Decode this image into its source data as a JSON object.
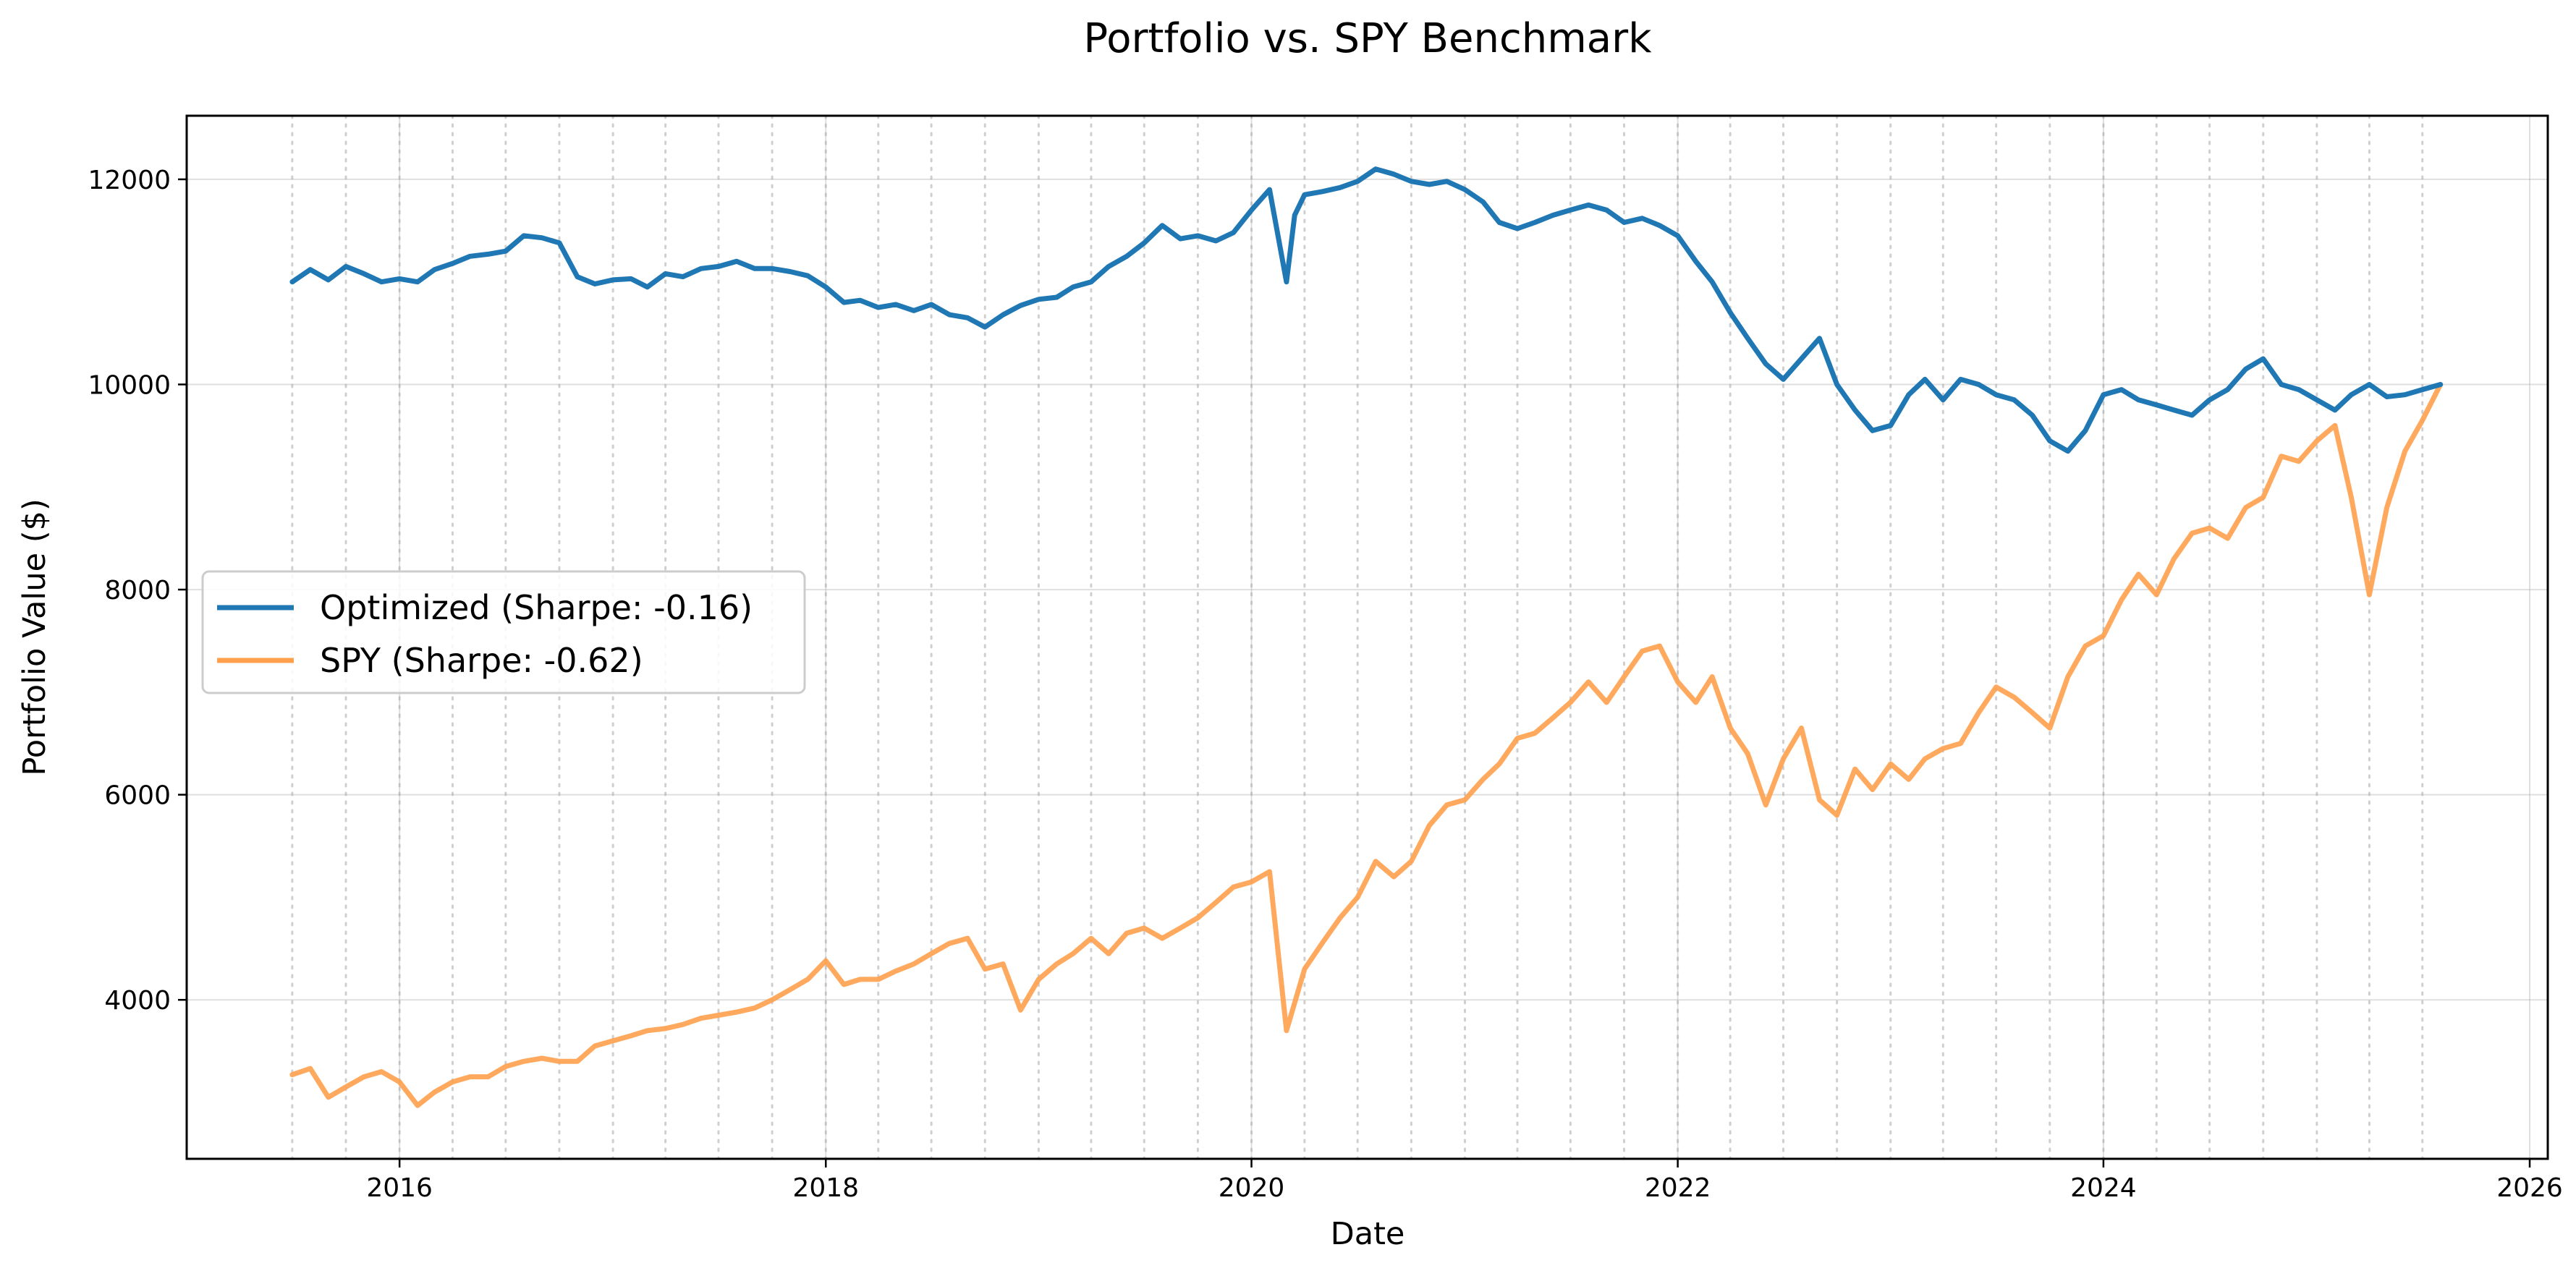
{
  "chart_data": {
    "type": "line",
    "title": "Portfolio vs. SPY Benchmark",
    "xlabel": "Date",
    "ylabel": "Portfolio Value ($)",
    "xlim": [
      "2015-01-01",
      "2026-02-01"
    ],
    "ylim": [
      2450,
      12620
    ],
    "x_ticks": [
      "2016",
      "2018",
      "2020",
      "2022",
      "2024",
      "2026"
    ],
    "y_ticks": [
      4000,
      6000,
      8000,
      10000,
      12000
    ],
    "grid": true,
    "legend_position": "center-left",
    "x_start": "2015-07-01",
    "x_end": "2025-08-01",
    "series": [
      {
        "name": "Optimized (Sharpe: -0.16)",
        "color": "#1f77b4",
        "points": [
          [
            "2015-07-01",
            11000
          ],
          [
            "2015-08-01",
            11120
          ],
          [
            "2015-09-01",
            11020
          ],
          [
            "2015-10-01",
            11150
          ],
          [
            "2015-11-01",
            11080
          ],
          [
            "2015-12-01",
            11000
          ],
          [
            "2016-01-01",
            11030
          ],
          [
            "2016-02-01",
            11000
          ],
          [
            "2016-03-01",
            11120
          ],
          [
            "2016-04-01",
            11180
          ],
          [
            "2016-05-01",
            11250
          ],
          [
            "2016-06-01",
            11270
          ],
          [
            "2016-07-01",
            11300
          ],
          [
            "2016-08-01",
            11450
          ],
          [
            "2016-09-01",
            11430
          ],
          [
            "2016-10-01",
            11380
          ],
          [
            "2016-11-01",
            11050
          ],
          [
            "2016-12-01",
            10980
          ],
          [
            "2017-01-01",
            11020
          ],
          [
            "2017-02-01",
            11030
          ],
          [
            "2017-03-01",
            10950
          ],
          [
            "2017-04-01",
            11080
          ],
          [
            "2017-05-01",
            11050
          ],
          [
            "2017-06-01",
            11130
          ],
          [
            "2017-07-01",
            11150
          ],
          [
            "2017-08-01",
            11200
          ],
          [
            "2017-09-01",
            11130
          ],
          [
            "2017-10-01",
            11130
          ],
          [
            "2017-11-01",
            11100
          ],
          [
            "2017-12-01",
            11060
          ],
          [
            "2018-01-01",
            10950
          ],
          [
            "2018-02-01",
            10800
          ],
          [
            "2018-03-01",
            10820
          ],
          [
            "2018-04-01",
            10750
          ],
          [
            "2018-05-01",
            10780
          ],
          [
            "2018-06-01",
            10720
          ],
          [
            "2018-07-01",
            10780
          ],
          [
            "2018-08-01",
            10680
          ],
          [
            "2018-09-01",
            10650
          ],
          [
            "2018-10-01",
            10560
          ],
          [
            "2018-11-01",
            10680
          ],
          [
            "2018-12-01",
            10770
          ],
          [
            "2019-01-01",
            10830
          ],
          [
            "2019-02-01",
            10850
          ],
          [
            "2019-03-01",
            10950
          ],
          [
            "2019-04-01",
            11000
          ],
          [
            "2019-05-01",
            11150
          ],
          [
            "2019-06-01",
            11250
          ],
          [
            "2019-07-01",
            11380
          ],
          [
            "2019-08-01",
            11550
          ],
          [
            "2019-09-01",
            11420
          ],
          [
            "2019-10-01",
            11450
          ],
          [
            "2019-11-01",
            11400
          ],
          [
            "2019-12-01",
            11480
          ],
          [
            "2020-01-01",
            11700
          ],
          [
            "2020-02-01",
            11900
          ],
          [
            "2020-03-01",
            11000
          ],
          [
            "2020-03-15",
            11650
          ],
          [
            "2020-04-01",
            11850
          ],
          [
            "2020-05-01",
            11880
          ],
          [
            "2020-06-01",
            11920
          ],
          [
            "2020-07-01",
            11980
          ],
          [
            "2020-08-01",
            12100
          ],
          [
            "2020-09-01",
            12050
          ],
          [
            "2020-10-01",
            11980
          ],
          [
            "2020-11-01",
            11950
          ],
          [
            "2020-12-01",
            11980
          ],
          [
            "2021-01-01",
            11900
          ],
          [
            "2021-02-01",
            11780
          ],
          [
            "2021-03-01",
            11580
          ],
          [
            "2021-04-01",
            11520
          ],
          [
            "2021-05-01",
            11580
          ],
          [
            "2021-06-01",
            11650
          ],
          [
            "2021-07-01",
            11700
          ],
          [
            "2021-08-01",
            11750
          ],
          [
            "2021-09-01",
            11700
          ],
          [
            "2021-10-01",
            11580
          ],
          [
            "2021-11-01",
            11620
          ],
          [
            "2021-12-01",
            11550
          ],
          [
            "2022-01-01",
            11450
          ],
          [
            "2022-02-01",
            11200
          ],
          [
            "2022-03-01",
            11000
          ],
          [
            "2022-04-01",
            10700
          ],
          [
            "2022-05-01",
            10450
          ],
          [
            "2022-06-01",
            10200
          ],
          [
            "2022-07-01",
            10050
          ],
          [
            "2022-08-01",
            10250
          ],
          [
            "2022-09-01",
            10450
          ],
          [
            "2022-10-01",
            10000
          ],
          [
            "2022-11-01",
            9750
          ],
          [
            "2022-12-01",
            9550
          ],
          [
            "2023-01-01",
            9600
          ],
          [
            "2023-02-01",
            9900
          ],
          [
            "2023-03-01",
            10050
          ],
          [
            "2023-04-01",
            9850
          ],
          [
            "2023-05-01",
            10050
          ],
          [
            "2023-06-01",
            10000
          ],
          [
            "2023-07-01",
            9900
          ],
          [
            "2023-08-01",
            9850
          ],
          [
            "2023-09-01",
            9700
          ],
          [
            "2023-10-01",
            9450
          ],
          [
            "2023-11-01",
            9350
          ],
          [
            "2023-12-01",
            9550
          ],
          [
            "2024-01-01",
            9900
          ],
          [
            "2024-02-01",
            9950
          ],
          [
            "2024-03-01",
            9850
          ],
          [
            "2024-04-01",
            9800
          ],
          [
            "2024-05-01",
            9750
          ],
          [
            "2024-06-01",
            9700
          ],
          [
            "2024-07-01",
            9850
          ],
          [
            "2024-08-01",
            9950
          ],
          [
            "2024-09-01",
            10150
          ],
          [
            "2024-10-01",
            10250
          ],
          [
            "2024-11-01",
            10000
          ],
          [
            "2024-12-01",
            9950
          ],
          [
            "2025-01-01",
            9850
          ],
          [
            "2025-02-01",
            9750
          ],
          [
            "2025-03-01",
            9900
          ],
          [
            "2025-04-01",
            10000
          ],
          [
            "2025-05-01",
            9880
          ],
          [
            "2025-06-01",
            9900
          ],
          [
            "2025-07-01",
            9950
          ],
          [
            "2025-08-01",
            10000
          ]
        ]
      },
      {
        "name": "SPY (Sharpe: -0.62)",
        "color": "#ffa04d",
        "points": [
          [
            "2015-07-01",
            3270
          ],
          [
            "2015-08-01",
            3330
          ],
          [
            "2015-09-01",
            3050
          ],
          [
            "2015-10-01",
            3150
          ],
          [
            "2015-11-01",
            3250
          ],
          [
            "2015-12-01",
            3300
          ],
          [
            "2016-01-01",
            3200
          ],
          [
            "2016-02-01",
            2970
          ],
          [
            "2016-03-01",
            3100
          ],
          [
            "2016-04-01",
            3200
          ],
          [
            "2016-05-01",
            3250
          ],
          [
            "2016-06-01",
            3250
          ],
          [
            "2016-07-01",
            3350
          ],
          [
            "2016-08-01",
            3400
          ],
          [
            "2016-09-01",
            3430
          ],
          [
            "2016-10-01",
            3400
          ],
          [
            "2016-11-01",
            3400
          ],
          [
            "2016-12-01",
            3550
          ],
          [
            "2017-01-01",
            3600
          ],
          [
            "2017-02-01",
            3650
          ],
          [
            "2017-03-01",
            3700
          ],
          [
            "2017-04-01",
            3720
          ],
          [
            "2017-05-01",
            3760
          ],
          [
            "2017-06-01",
            3820
          ],
          [
            "2017-07-01",
            3850
          ],
          [
            "2017-08-01",
            3880
          ],
          [
            "2017-09-01",
            3920
          ],
          [
            "2017-10-01",
            4000
          ],
          [
            "2017-11-01",
            4100
          ],
          [
            "2017-12-01",
            4200
          ],
          [
            "2018-01-01",
            4380
          ],
          [
            "2018-02-01",
            4150
          ],
          [
            "2018-03-01",
            4200
          ],
          [
            "2018-04-01",
            4200
          ],
          [
            "2018-05-01",
            4280
          ],
          [
            "2018-06-01",
            4350
          ],
          [
            "2018-07-01",
            4450
          ],
          [
            "2018-08-01",
            4550
          ],
          [
            "2018-09-01",
            4600
          ],
          [
            "2018-10-01",
            4300
          ],
          [
            "2018-11-01",
            4350
          ],
          [
            "2018-12-01",
            3900
          ],
          [
            "2019-01-01",
            4200
          ],
          [
            "2019-02-01",
            4350
          ],
          [
            "2019-03-01",
            4450
          ],
          [
            "2019-04-01",
            4600
          ],
          [
            "2019-05-01",
            4450
          ],
          [
            "2019-06-01",
            4650
          ],
          [
            "2019-07-01",
            4700
          ],
          [
            "2019-08-01",
            4600
          ],
          [
            "2019-09-01",
            4700
          ],
          [
            "2019-10-01",
            4800
          ],
          [
            "2019-11-01",
            4950
          ],
          [
            "2019-12-01",
            5100
          ],
          [
            "2020-01-01",
            5150
          ],
          [
            "2020-02-01",
            5250
          ],
          [
            "2020-03-01",
            3700
          ],
          [
            "2020-04-01",
            4300
          ],
          [
            "2020-05-01",
            4550
          ],
          [
            "2020-06-01",
            4800
          ],
          [
            "2020-07-01",
            5000
          ],
          [
            "2020-08-01",
            5350
          ],
          [
            "2020-09-01",
            5200
          ],
          [
            "2020-10-01",
            5350
          ],
          [
            "2020-11-01",
            5700
          ],
          [
            "2020-12-01",
            5900
          ],
          [
            "2021-01-01",
            5950
          ],
          [
            "2021-02-01",
            6150
          ],
          [
            "2021-03-01",
            6300
          ],
          [
            "2021-04-01",
            6550
          ],
          [
            "2021-05-01",
            6600
          ],
          [
            "2021-06-01",
            6750
          ],
          [
            "2021-07-01",
            6900
          ],
          [
            "2021-08-01",
            7100
          ],
          [
            "2021-09-01",
            6900
          ],
          [
            "2021-10-01",
            7150
          ],
          [
            "2021-11-01",
            7400
          ],
          [
            "2021-12-01",
            7450
          ],
          [
            "2022-01-01",
            7100
          ],
          [
            "2022-02-01",
            6900
          ],
          [
            "2022-03-01",
            7150
          ],
          [
            "2022-04-01",
            6650
          ],
          [
            "2022-05-01",
            6400
          ],
          [
            "2022-06-01",
            5900
          ],
          [
            "2022-07-01",
            6350
          ],
          [
            "2022-08-01",
            6650
          ],
          [
            "2022-09-01",
            5950
          ],
          [
            "2022-10-01",
            5800
          ],
          [
            "2022-11-01",
            6250
          ],
          [
            "2022-12-01",
            6050
          ],
          [
            "2023-01-01",
            6300
          ],
          [
            "2023-02-01",
            6150
          ],
          [
            "2023-03-01",
            6350
          ],
          [
            "2023-04-01",
            6450
          ],
          [
            "2023-05-01",
            6500
          ],
          [
            "2023-06-01",
            6800
          ],
          [
            "2023-07-01",
            7050
          ],
          [
            "2023-08-01",
            6950
          ],
          [
            "2023-09-01",
            6800
          ],
          [
            "2023-10-01",
            6650
          ],
          [
            "2023-11-01",
            7150
          ],
          [
            "2023-12-01",
            7450
          ],
          [
            "2024-01-01",
            7550
          ],
          [
            "2024-02-01",
            7900
          ],
          [
            "2024-03-01",
            8150
          ],
          [
            "2024-04-01",
            7950
          ],
          [
            "2024-05-01",
            8300
          ],
          [
            "2024-06-01",
            8550
          ],
          [
            "2024-07-01",
            8600
          ],
          [
            "2024-08-01",
            8500
          ],
          [
            "2024-09-01",
            8800
          ],
          [
            "2024-10-01",
            8900
          ],
          [
            "2024-11-01",
            9300
          ],
          [
            "2024-12-01",
            9250
          ],
          [
            "2025-01-01",
            9450
          ],
          [
            "2025-02-01",
            9600
          ],
          [
            "2025-03-01",
            8900
          ],
          [
            "2025-04-01",
            7950
          ],
          [
            "2025-05-01",
            8800
          ],
          [
            "2025-06-01",
            9350
          ],
          [
            "2025-07-01",
            9650
          ],
          [
            "2025-08-01",
            10000
          ]
        ]
      }
    ]
  }
}
